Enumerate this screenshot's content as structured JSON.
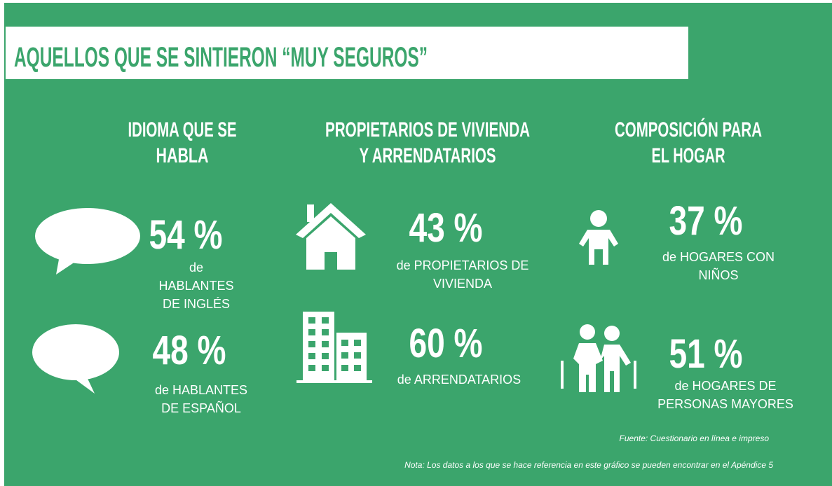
{
  "title": "AQUELLOS QUE SE SINTIERON “MUY SEGUROS”",
  "sections": [
    {
      "heading": [
        "IDIOMA QUE SE",
        "HABLA"
      ],
      "stats": [
        {
          "value": "54 %",
          "label": [
            "de",
            "HABLANTES",
            "DE INGLÉS"
          ]
        },
        {
          "value": "48 %",
          "label": [
            "de HABLANTES",
            "DE ESPAÑOL"
          ]
        }
      ]
    },
    {
      "heading": [
        "PROPIETARIOS DE VIVIENDA",
        "Y ARRENDATARIOS"
      ],
      "stats": [
        {
          "value": "43 %",
          "label": [
            "de PROPIETARIOS DE",
            "VIVIENDA"
          ]
        },
        {
          "value": "60 %",
          "label": [
            "de ARRENDATARIOS"
          ]
        }
      ]
    },
    {
      "heading": [
        "COMPOSICIÓN PARA",
        "EL HOGAR"
      ],
      "stats": [
        {
          "value": "37 %",
          "label": [
            "de HOGARES CON",
            "NIÑOS"
          ]
        },
        {
          "value": "51 %",
          "label": [
            "de HOGARES DE",
            "PERSONAS MAYORES"
          ]
        }
      ]
    }
  ],
  "source": "Fuente: Cuestionario en línea e impreso",
  "note": "Nota: Los datos a los que se hace referencia en este gráfico se pueden encontrar en el Apéndice 5"
}
